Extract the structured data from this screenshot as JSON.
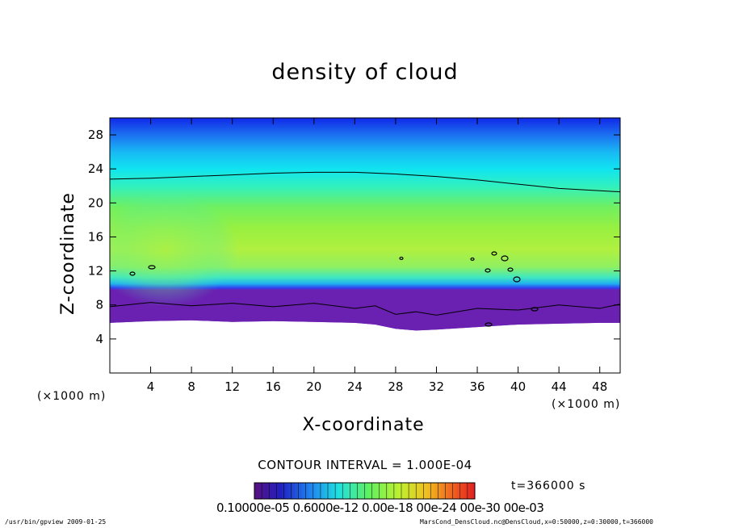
{
  "chart_data": {
    "type": "heatmap",
    "title": "density of cloud",
    "xlabel": "X-coordinate",
    "ylabel": "Z-coordinate",
    "x_unit_label": "(×1000 m)",
    "xlim": [
      0,
      50
    ],
    "ylim": [
      0,
      30
    ],
    "xticks": [
      4,
      8,
      12,
      16,
      20,
      24,
      28,
      32,
      36,
      40,
      44,
      48
    ],
    "yticks": [
      4,
      8,
      12,
      16,
      20,
      24,
      28
    ],
    "contour_interval_text": "CONTOUR INTERVAL = 1.000E-04",
    "contour_level_z_km": [
      22.8,
      22.9,
      23.1,
      23.3,
      23.5,
      23.6,
      23.6,
      23.4,
      23.1,
      22.7,
      22.2,
      21.7,
      21.3
    ],
    "contour_level_x_km": [
      0,
      4,
      8,
      12,
      16,
      20,
      24,
      28,
      32,
      36,
      40,
      44,
      50
    ],
    "cloud_base_z_km": [
      5.9,
      6.1,
      6.2,
      6.0,
      6.1,
      6.0,
      5.9,
      5.7,
      5.2,
      5.0,
      5.1,
      5.4,
      5.7,
      5.8,
      5.9,
      5.9
    ],
    "cloud_base_x_km": [
      0,
      4,
      8,
      12,
      16,
      20,
      24,
      26,
      28,
      30,
      32,
      36,
      40,
      44,
      48,
      50
    ],
    "colorbar_labels": "0.10000e-05 0.6000e-12 0.00e-18 00e-24 00e-30 00e-03",
    "time_label": "t=366000 s",
    "grid": false
  },
  "footer": {
    "left": "/usr/bin/gpview   2009-01-25",
    "right": "MarsCond_DensCloud.nc@DensCloud,x=0:50000,z=0:30000,t=366000"
  },
  "colors": {
    "top": "#1020e0",
    "upper": "#00e0f0",
    "middle": "#90f040",
    "lower_edge": "#3030f0",
    "base": "#7020a0"
  }
}
